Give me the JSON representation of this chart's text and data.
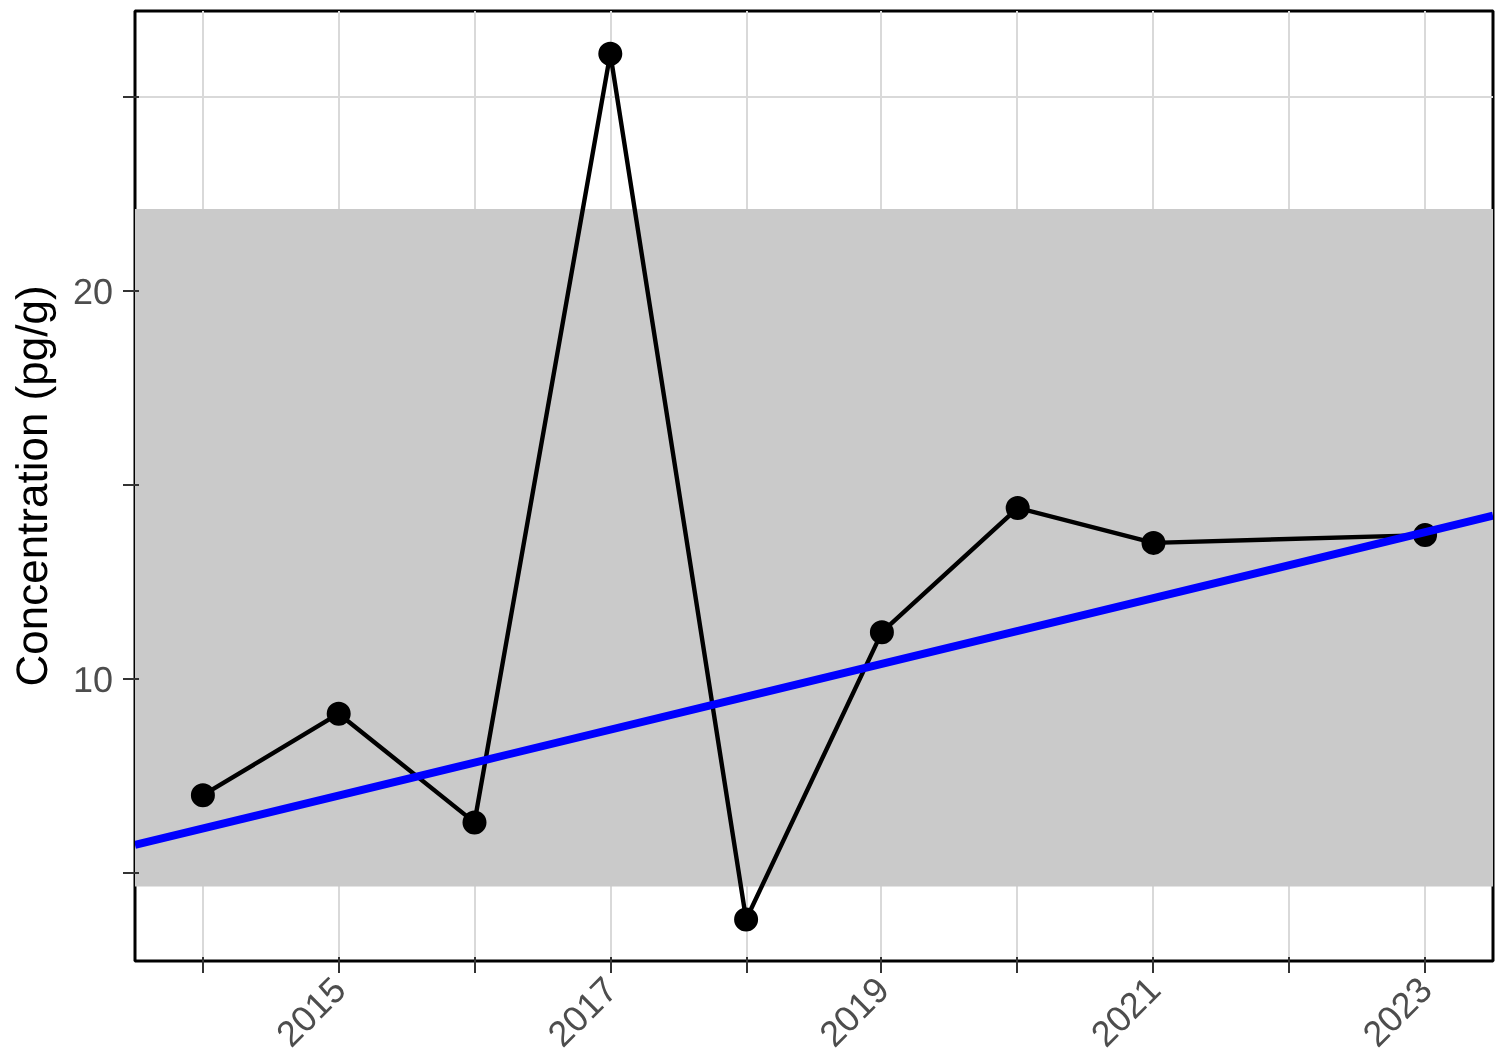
{
  "chart_data": {
    "type": "line",
    "ylabel": "Concentration (pg/g)",
    "xlim": [
      2013.5,
      2023.5
    ],
    "ylim": [
      2.73,
      27.2
    ],
    "xticks": [
      {
        "value": 2014,
        "label": null
      },
      2015,
      {
        "value": 2016,
        "label": null
      },
      2017,
      {
        "value": 2018,
        "label": null
      },
      2019,
      {
        "value": 2020,
        "label": null
      },
      2021,
      {
        "value": 2022,
        "label": null
      },
      2023
    ],
    "yticks": [
      {
        "value": 5,
        "label": null
      },
      10,
      {
        "value": 15,
        "label": null
      },
      20,
      {
        "value": 25,
        "label": null
      }
    ],
    "grid": true,
    "marker": "circle",
    "line_style": "solid",
    "bands": [
      {
        "axis": "y",
        "from": 4.65,
        "to": 22.1,
        "color": "#cacaca"
      }
    ],
    "series": [
      {
        "x": [
          2014,
          2015,
          2016,
          2017,
          2018,
          2019,
          2020,
          2021,
          2023
        ],
        "values": [
          7.0,
          9.1,
          6.3,
          26.1,
          3.8,
          11.2,
          14.4,
          13.5,
          13.7
        ],
        "color": "#000000"
      },
      {
        "type": "line",
        "marker": "none",
        "x": [
          2013.5,
          2023.5
        ],
        "values": [
          5.72,
          14.2
        ],
        "color": "#0000ff"
      }
    ]
  }
}
